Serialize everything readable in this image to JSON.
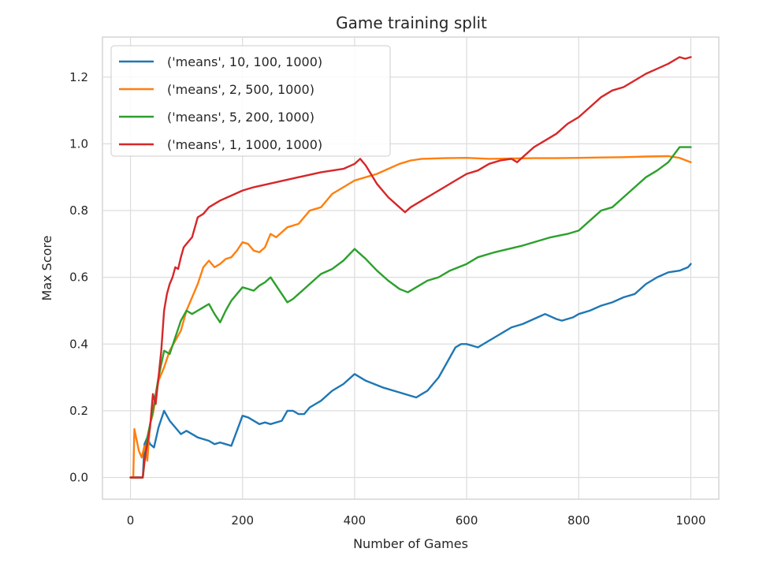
{
  "chart_data": {
    "type": "line",
    "title": "Game training split",
    "xlabel": "Number of Games",
    "ylabel": "Max Score",
    "xlim": [
      -50,
      1050
    ],
    "ylim": [
      -0.065,
      1.32
    ],
    "xticks": [
      0,
      200,
      400,
      600,
      800,
      1000
    ],
    "xtick_labels": [
      "0",
      "200",
      "400",
      "600",
      "800",
      "1000"
    ],
    "yticks": [
      0.0,
      0.2,
      0.4,
      0.6,
      0.8,
      1.0,
      1.2
    ],
    "ytick_labels": [
      "0.0",
      "0.2",
      "0.4",
      "0.6",
      "0.8",
      "1.0",
      "1.2"
    ],
    "grid": true,
    "legend_position": "upper-left",
    "series": [
      {
        "name": "('means', 10, 100, 1000)",
        "color": "#1f77b4",
        "points": [
          [
            0,
            0
          ],
          [
            22,
            0
          ],
          [
            25,
            0.1
          ],
          [
            30,
            0.12
          ],
          [
            35,
            0.1
          ],
          [
            42,
            0.09
          ],
          [
            50,
            0.15
          ],
          [
            60,
            0.2
          ],
          [
            70,
            0.17
          ],
          [
            80,
            0.15
          ],
          [
            90,
            0.13
          ],
          [
            100,
            0.14
          ],
          [
            120,
            0.12
          ],
          [
            140,
            0.11
          ],
          [
            150,
            0.1
          ],
          [
            160,
            0.105
          ],
          [
            170,
            0.1
          ],
          [
            180,
            0.095
          ],
          [
            190,
            0.14
          ],
          [
            200,
            0.185
          ],
          [
            210,
            0.18
          ],
          [
            230,
            0.16
          ],
          [
            240,
            0.165
          ],
          [
            250,
            0.16
          ],
          [
            260,
            0.165
          ],
          [
            270,
            0.17
          ],
          [
            280,
            0.2
          ],
          [
            290,
            0.2
          ],
          [
            300,
            0.19
          ],
          [
            310,
            0.19
          ],
          [
            320,
            0.21
          ],
          [
            340,
            0.23
          ],
          [
            360,
            0.26
          ],
          [
            380,
            0.28
          ],
          [
            400,
            0.31
          ],
          [
            420,
            0.29
          ],
          [
            450,
            0.27
          ],
          [
            480,
            0.255
          ],
          [
            510,
            0.24
          ],
          [
            520,
            0.25
          ],
          [
            530,
            0.26
          ],
          [
            540,
            0.28
          ],
          [
            550,
            0.3
          ],
          [
            560,
            0.33
          ],
          [
            580,
            0.39
          ],
          [
            590,
            0.4
          ],
          [
            600,
            0.4
          ],
          [
            610,
            0.395
          ],
          [
            620,
            0.39
          ],
          [
            640,
            0.41
          ],
          [
            660,
            0.43
          ],
          [
            680,
            0.45
          ],
          [
            700,
            0.46
          ],
          [
            720,
            0.475
          ],
          [
            740,
            0.49
          ],
          [
            760,
            0.475
          ],
          [
            770,
            0.47
          ],
          [
            790,
            0.48
          ],
          [
            800,
            0.49
          ],
          [
            820,
            0.5
          ],
          [
            840,
            0.515
          ],
          [
            860,
            0.525
          ],
          [
            880,
            0.54
          ],
          [
            900,
            0.55
          ],
          [
            920,
            0.58
          ],
          [
            940,
            0.6
          ],
          [
            960,
            0.615
          ],
          [
            980,
            0.62
          ],
          [
            995,
            0.63
          ],
          [
            1000,
            0.64
          ]
        ]
      },
      {
        "name": "('means', 2, 500, 1000)",
        "color": "#ff7f0e",
        "points": [
          [
            0,
            0
          ],
          [
            5,
            0
          ],
          [
            7,
            0.145
          ],
          [
            10,
            0.12
          ],
          [
            15,
            0.08
          ],
          [
            20,
            0.06
          ],
          [
            25,
            0.095
          ],
          [
            30,
            0.05
          ],
          [
            35,
            0.16
          ],
          [
            40,
            0.19
          ],
          [
            50,
            0.29
          ],
          [
            60,
            0.33
          ],
          [
            70,
            0.38
          ],
          [
            80,
            0.41
          ],
          [
            90,
            0.44
          ],
          [
            100,
            0.5
          ],
          [
            120,
            0.58
          ],
          [
            130,
            0.63
          ],
          [
            140,
            0.65
          ],
          [
            150,
            0.63
          ],
          [
            160,
            0.64
          ],
          [
            170,
            0.655
          ],
          [
            180,
            0.66
          ],
          [
            190,
            0.68
          ],
          [
            200,
            0.705
          ],
          [
            210,
            0.7
          ],
          [
            220,
            0.68
          ],
          [
            230,
            0.675
          ],
          [
            240,
            0.69
          ],
          [
            250,
            0.73
          ],
          [
            260,
            0.72
          ],
          [
            280,
            0.75
          ],
          [
            300,
            0.76
          ],
          [
            320,
            0.8
          ],
          [
            340,
            0.81
          ],
          [
            360,
            0.85
          ],
          [
            380,
            0.87
          ],
          [
            400,
            0.89
          ],
          [
            420,
            0.9
          ],
          [
            440,
            0.91
          ],
          [
            460,
            0.925
          ],
          [
            480,
            0.94
          ],
          [
            500,
            0.95
          ],
          [
            520,
            0.955
          ],
          [
            560,
            0.957
          ],
          [
            600,
            0.958
          ],
          [
            640,
            0.955
          ],
          [
            680,
            0.956
          ],
          [
            720,
            0.957
          ],
          [
            760,
            0.957
          ],
          [
            800,
            0.958
          ],
          [
            840,
            0.959
          ],
          [
            880,
            0.96
          ],
          [
            920,
            0.962
          ],
          [
            960,
            0.963
          ],
          [
            980,
            0.958
          ],
          [
            1000,
            0.945
          ]
        ]
      },
      {
        "name": "('means', 5, 200, 1000)",
        "color": "#2ca02c",
        "points": [
          [
            0,
            0
          ],
          [
            22,
            0
          ],
          [
            30,
            0.12
          ],
          [
            40,
            0.2
          ],
          [
            50,
            0.3
          ],
          [
            60,
            0.38
          ],
          [
            70,
            0.37
          ],
          [
            80,
            0.42
          ],
          [
            90,
            0.47
          ],
          [
            100,
            0.5
          ],
          [
            110,
            0.49
          ],
          [
            120,
            0.5
          ],
          [
            130,
            0.51
          ],
          [
            140,
            0.52
          ],
          [
            150,
            0.49
          ],
          [
            160,
            0.465
          ],
          [
            170,
            0.5
          ],
          [
            180,
            0.53
          ],
          [
            190,
            0.55
          ],
          [
            200,
            0.57
          ],
          [
            210,
            0.565
          ],
          [
            220,
            0.56
          ],
          [
            230,
            0.575
          ],
          [
            240,
            0.585
          ],
          [
            250,
            0.6
          ],
          [
            260,
            0.575
          ],
          [
            270,
            0.55
          ],
          [
            280,
            0.525
          ],
          [
            290,
            0.535
          ],
          [
            300,
            0.55
          ],
          [
            320,
            0.58
          ],
          [
            340,
            0.61
          ],
          [
            360,
            0.625
          ],
          [
            380,
            0.65
          ],
          [
            400,
            0.685
          ],
          [
            420,
            0.655
          ],
          [
            440,
            0.62
          ],
          [
            460,
            0.59
          ],
          [
            480,
            0.565
          ],
          [
            495,
            0.555
          ],
          [
            510,
            0.57
          ],
          [
            530,
            0.59
          ],
          [
            550,
            0.6
          ],
          [
            570,
            0.62
          ],
          [
            600,
            0.64
          ],
          [
            620,
            0.66
          ],
          [
            650,
            0.675
          ],
          [
            700,
            0.695
          ],
          [
            750,
            0.72
          ],
          [
            780,
            0.73
          ],
          [
            800,
            0.74
          ],
          [
            820,
            0.77
          ],
          [
            840,
            0.8
          ],
          [
            860,
            0.81
          ],
          [
            880,
            0.84
          ],
          [
            900,
            0.87
          ],
          [
            920,
            0.9
          ],
          [
            940,
            0.92
          ],
          [
            960,
            0.945
          ],
          [
            980,
            0.99
          ],
          [
            1000,
            0.99
          ]
        ]
      },
      {
        "name": "('means', 1, 1000, 1000)",
        "color": "#d62728",
        "points": [
          [
            0,
            0
          ],
          [
            22,
            0
          ],
          [
            25,
            0.05
          ],
          [
            30,
            0.1
          ],
          [
            35,
            0.15
          ],
          [
            40,
            0.25
          ],
          [
            45,
            0.22
          ],
          [
            50,
            0.3
          ],
          [
            55,
            0.38
          ],
          [
            60,
            0.5
          ],
          [
            65,
            0.55
          ],
          [
            70,
            0.58
          ],
          [
            75,
            0.6
          ],
          [
            80,
            0.63
          ],
          [
            85,
            0.625
          ],
          [
            90,
            0.66
          ],
          [
            95,
            0.69
          ],
          [
            100,
            0.7
          ],
          [
            110,
            0.72
          ],
          [
            120,
            0.78
          ],
          [
            130,
            0.79
          ],
          [
            140,
            0.81
          ],
          [
            160,
            0.83
          ],
          [
            180,
            0.845
          ],
          [
            200,
            0.86
          ],
          [
            220,
            0.87
          ],
          [
            260,
            0.885
          ],
          [
            300,
            0.9
          ],
          [
            340,
            0.915
          ],
          [
            380,
            0.925
          ],
          [
            400,
            0.94
          ],
          [
            410,
            0.955
          ],
          [
            420,
            0.935
          ],
          [
            440,
            0.88
          ],
          [
            460,
            0.84
          ],
          [
            480,
            0.81
          ],
          [
            490,
            0.795
          ],
          [
            500,
            0.81
          ],
          [
            520,
            0.83
          ],
          [
            540,
            0.85
          ],
          [
            560,
            0.87
          ],
          [
            580,
            0.89
          ],
          [
            600,
            0.91
          ],
          [
            620,
            0.92
          ],
          [
            640,
            0.94
          ],
          [
            660,
            0.95
          ],
          [
            680,
            0.955
          ],
          [
            690,
            0.945
          ],
          [
            700,
            0.96
          ],
          [
            720,
            0.99
          ],
          [
            740,
            1.01
          ],
          [
            760,
            1.03
          ],
          [
            780,
            1.06
          ],
          [
            800,
            1.08
          ],
          [
            820,
            1.11
          ],
          [
            840,
            1.14
          ],
          [
            860,
            1.16
          ],
          [
            880,
            1.17
          ],
          [
            900,
            1.19
          ],
          [
            920,
            1.21
          ],
          [
            940,
            1.225
          ],
          [
            960,
            1.24
          ],
          [
            980,
            1.26
          ],
          [
            990,
            1.255
          ],
          [
            1000,
            1.26
          ]
        ]
      }
    ]
  }
}
